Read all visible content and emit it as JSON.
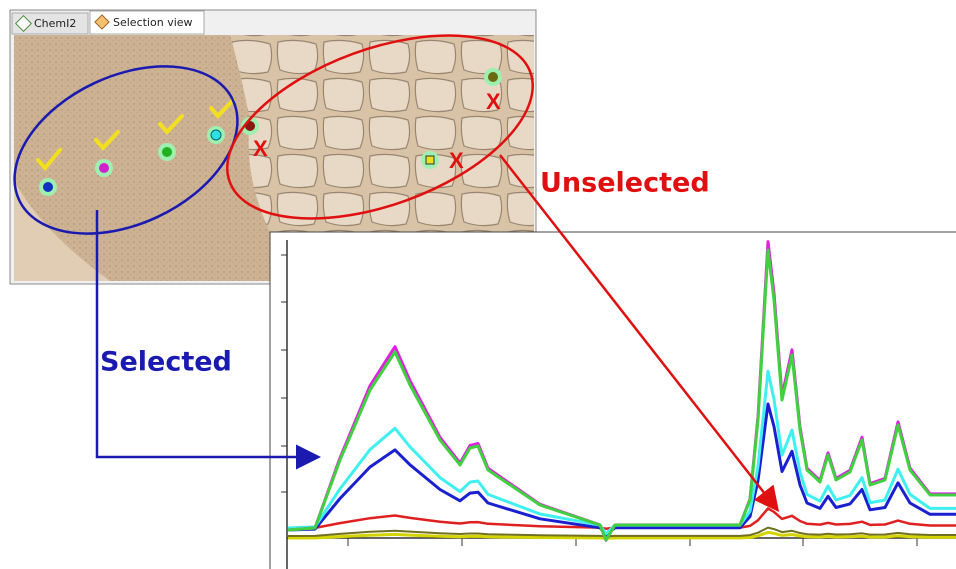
{
  "tabs": [
    "ChemI2",
    "Selection view"
  ],
  "image_marks": [
    "X",
    "X",
    "X"
  ],
  "annotations": {
    "unselected": "Unselected",
    "selected": "Selected"
  }
}
